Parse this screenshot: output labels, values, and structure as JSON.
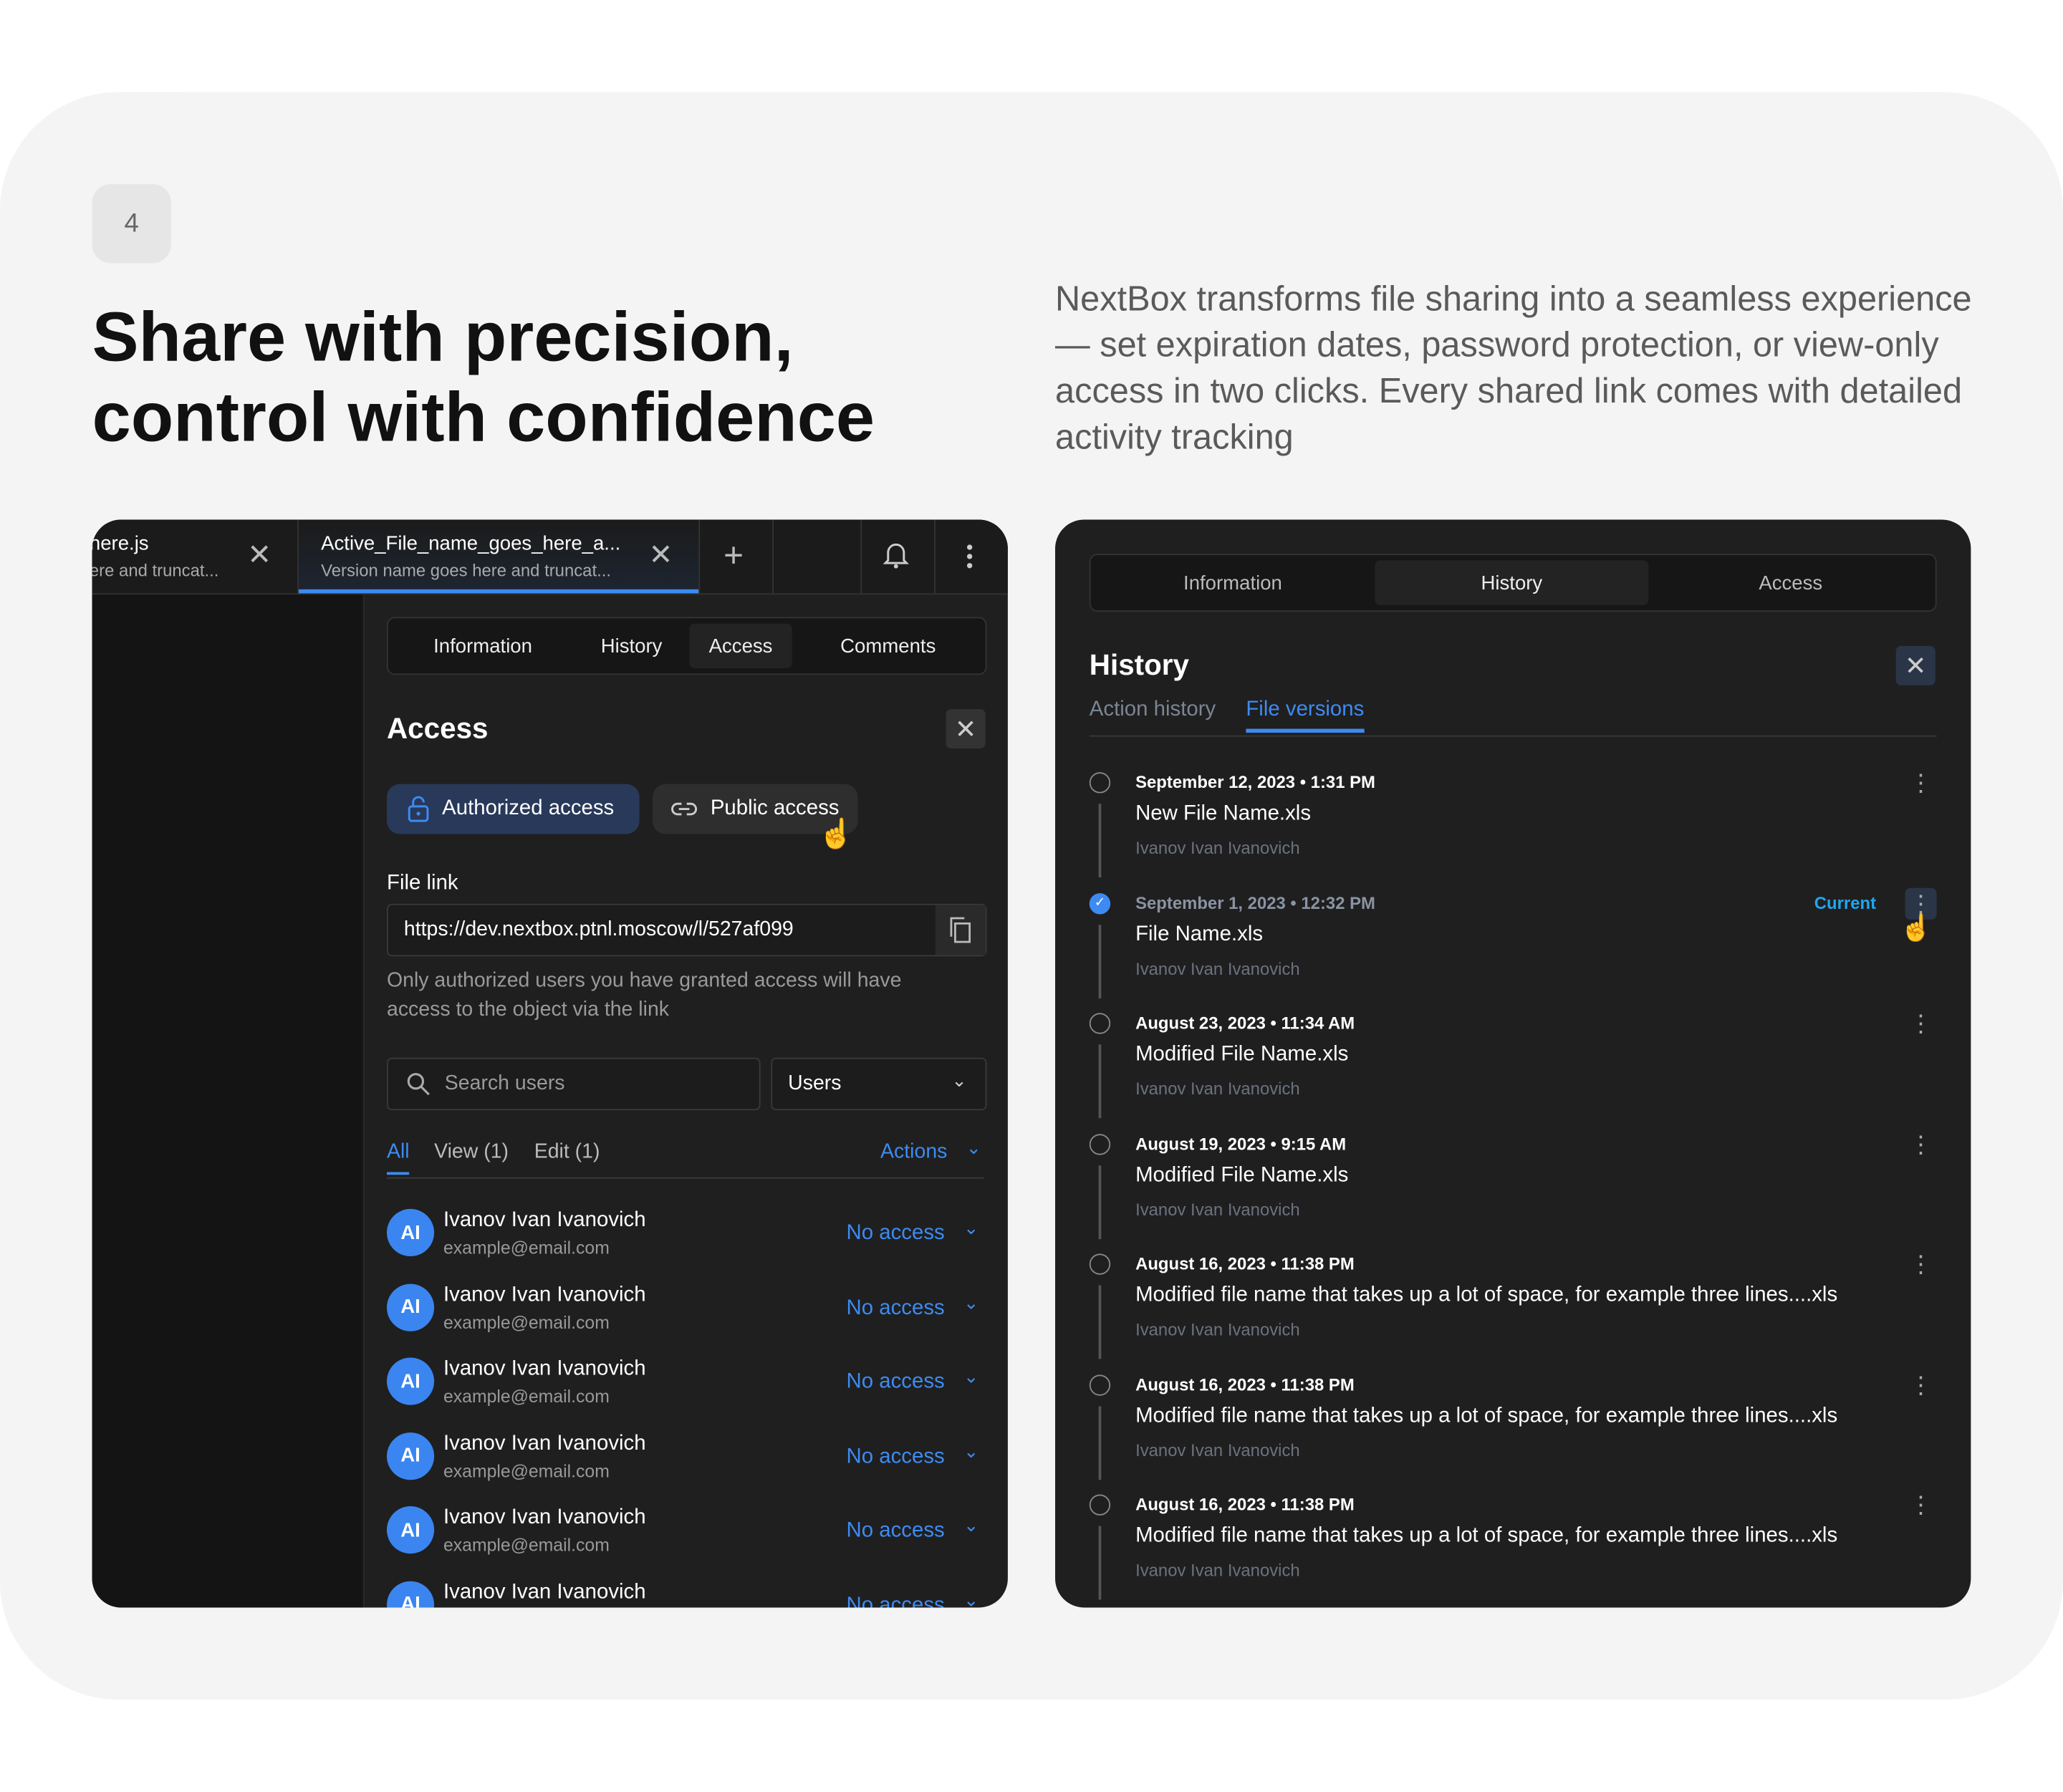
{
  "step_number": "4",
  "headline": [
    "Share with precision,",
    "control with confidence"
  ],
  "description": "NextBox transforms file sharing into a seamless experience — set expiration dates, password protection, or view-only access in two clicks. Every shared link comes with detailed activity tracking",
  "colors": {
    "accent": "#3d8bf2",
    "panel_bg": "#1f1f1f",
    "card_bg": "#f4f4f4",
    "current_label": "#1ea7f0"
  },
  "left_panel": {
    "file_tabs": [
      {
        "title": "here.js",
        "subtitle": "ere and truncat..."
      },
      {
        "title": "Active_File_name_goes_here_a...",
        "subtitle": "Version name goes here and truncat...",
        "active": true
      }
    ],
    "icons": {
      "close": "close-icon",
      "add": "plus-icon",
      "bell": "bell-icon",
      "more": "more-vertical-icon"
    },
    "section_tabs": [
      "Information",
      "History",
      "Access",
      "Comments"
    ],
    "active_section_tab": "Access",
    "title": "Access",
    "access_modes": {
      "authorized": "Authorized access",
      "public": "Public access"
    },
    "file_link_label": "File link",
    "file_link": "https://dev.nextbox.ptnl.moscow/l/527af099",
    "hint": "Only authorized users you have granted access will have access to the object via the link",
    "search_placeholder": "Search users",
    "filter_value": "Users",
    "filter_tabs": [
      "All",
      "View (1)",
      "Edit (1)"
    ],
    "actions_label": "Actions",
    "users": [
      {
        "initials": "AI",
        "name": "Ivanov Ivan Ivanovich",
        "email": "example@email.com",
        "access": "No access"
      },
      {
        "initials": "AI",
        "name": "Ivanov Ivan Ivanovich",
        "email": "example@email.com",
        "access": "No access"
      },
      {
        "initials": "AI",
        "name": "Ivanov Ivan Ivanovich",
        "email": "example@email.com",
        "access": "No access"
      },
      {
        "initials": "AI",
        "name": "Ivanov Ivan Ivanovich",
        "email": "example@email.com",
        "access": "No access"
      },
      {
        "initials": "AI",
        "name": "Ivanov Ivan Ivanovich",
        "email": "example@email.com",
        "access": "No access"
      },
      {
        "initials": "AI",
        "name": "Ivanov Ivan Ivanovich",
        "email": "",
        "access": "No access"
      }
    ]
  },
  "right_panel": {
    "section_tabs": [
      "Information",
      "History",
      "Access"
    ],
    "active_section_tab": "History",
    "title": "History",
    "sub_tabs": [
      "Action history",
      "File versions"
    ],
    "active_sub_tab": "File versions",
    "current_label": "Current",
    "versions": [
      {
        "date": "September 12, 2023 • 1:31 PM",
        "name": "New File Name.xls",
        "author": "Ivanov Ivan Ivanovich"
      },
      {
        "date": "September 1, 2023 • 12:32 PM",
        "name": "File Name.xls",
        "author": "Ivanov Ivan Ivanovich",
        "current": true
      },
      {
        "date": "August 23, 2023 • 11:34 AM",
        "name": "Modified File Name.xls",
        "author": "Ivanov Ivan Ivanovich"
      },
      {
        "date": "August 19, 2023 • 9:15 AM",
        "name": "Modified File Name.xls",
        "author": "Ivanov Ivan Ivanovich"
      },
      {
        "date": "August 16, 2023 • 11:38 PM",
        "name": "Modified file name that takes up a lot of space, for example three lines....xls",
        "author": "Ivanov Ivan Ivanovich"
      },
      {
        "date": "August 16, 2023 • 11:38 PM",
        "name": "Modified file name that takes up a lot of space, for example three lines....xls",
        "author": "Ivanov Ivan Ivanovich"
      },
      {
        "date": "August 16, 2023 • 11:38 PM",
        "name": "Modified file name that takes up a lot of space, for example three lines....xls",
        "author": "Ivanov Ivan Ivanovich"
      }
    ]
  }
}
